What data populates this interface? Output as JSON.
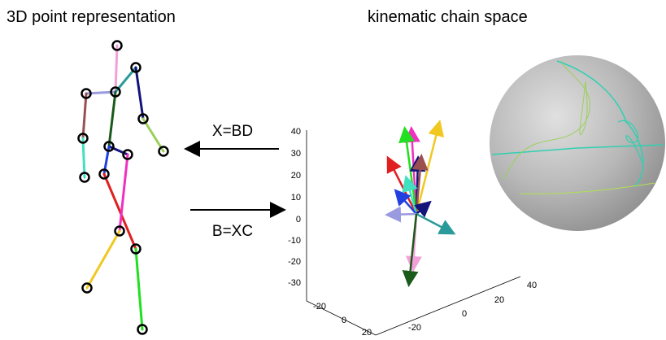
{
  "titles": {
    "left": "3D point representation",
    "right": "kinematic chain space"
  },
  "equations": {
    "decode": "X=BD",
    "encode": "B=XC"
  },
  "plot": {
    "z_ticks": [
      40,
      30,
      20,
      10,
      0,
      -10,
      -20,
      -30
    ],
    "x_ticks": [
      -20,
      0,
      20
    ],
    "y_ticks": [
      -20,
      0,
      20,
      40
    ]
  }
}
